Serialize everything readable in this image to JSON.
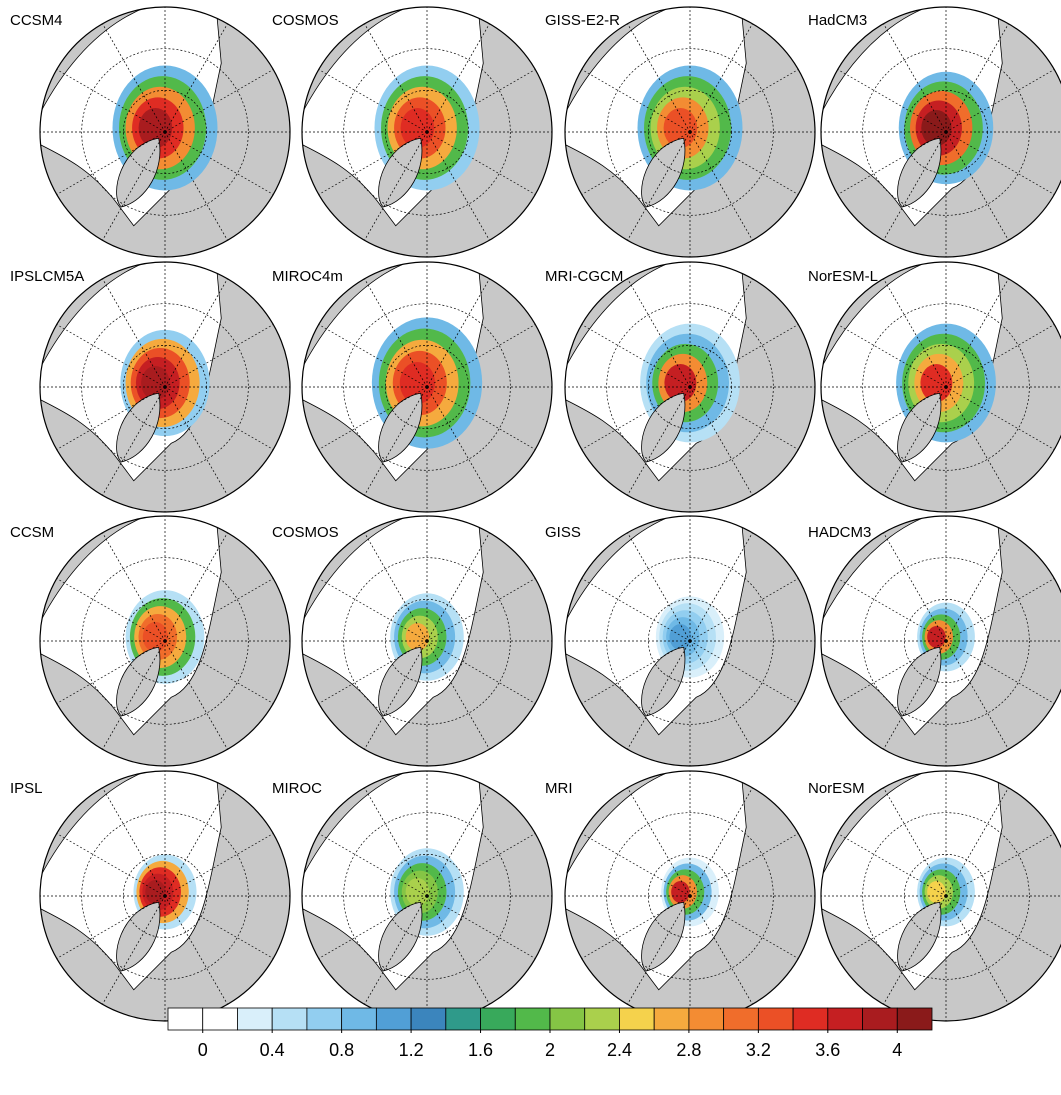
{
  "panels": [
    {
      "label": "CCSM4"
    },
    {
      "label": "COSMOS"
    },
    {
      "label": "GISS-E2-R"
    },
    {
      "label": "HadCM3"
    },
    {
      "label": "IPSLCM5A"
    },
    {
      "label": "MIROC4m"
    },
    {
      "label": "MRI-CGCM"
    },
    {
      "label": "NorESM-L"
    },
    {
      "label": "CCSM"
    },
    {
      "label": "COSMOS"
    },
    {
      "label": "GISS"
    },
    {
      "label": "HADCM3"
    },
    {
      "label": "IPSL"
    },
    {
      "label": "MIROC"
    },
    {
      "label": "MRI"
    },
    {
      "label": "NorESM"
    }
  ],
  "colorbar": {
    "levels": [
      0,
      0.2,
      0.4,
      0.6,
      0.8,
      1,
      1.2,
      1.4,
      1.6,
      1.8,
      2,
      2.2,
      2.4,
      2.6,
      2.8,
      3,
      3.2,
      3.4,
      3.6,
      3.8,
      4
    ],
    "colors": [
      "#ffffff",
      "#ffffff",
      "#d9effa",
      "#b6e0f5",
      "#92cef0",
      "#6fb9e6",
      "#519fd6",
      "#3b85bd",
      "#2f9a8a",
      "#38a95b",
      "#52b94a",
      "#85c545",
      "#aad04c",
      "#f5d24c",
      "#f5aa3e",
      "#f38c33",
      "#f06d2b",
      "#eb5026",
      "#df2c23",
      "#c51f22",
      "#a91c1f",
      "#8a1a1a"
    ],
    "ticks": [
      0,
      0.4,
      0.8,
      1.2,
      1.6,
      2,
      2.4,
      2.8,
      3.2,
      3.6,
      4
    ]
  }
}
